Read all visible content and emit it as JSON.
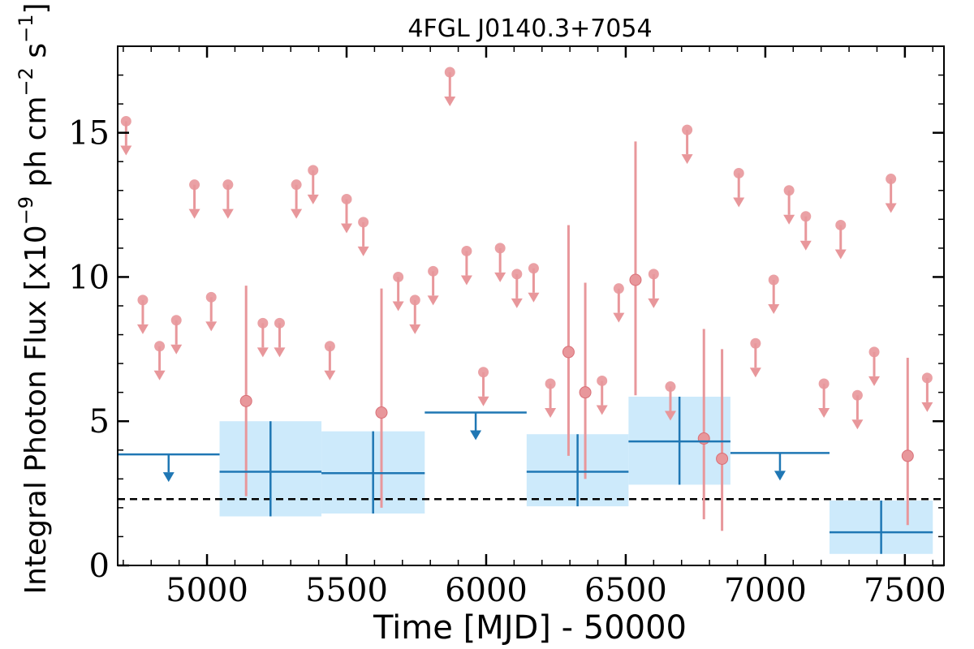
{
  "chart_data": {
    "type": "scatter",
    "title": "4FGL J0140.3+7054",
    "xlabel": "Time [MJD] - 50000",
    "ylabel": "Integral Photon Flux [x10",
    "ylabel_exp": "−9",
    "ylabel_mid": " ph cm",
    "ylabel_exp2": "−2",
    "ylabel_mid2": " s",
    "ylabel_exp3": "−1",
    "ylabel_end": "]",
    "xlim": [
      4680,
      7640
    ],
    "ylim": [
      0,
      18
    ],
    "xticks": [
      "5000",
      "5500",
      "6000",
      "6500",
      "7000",
      "7500"
    ],
    "yticks": [
      "0",
      "5",
      "10",
      "15"
    ],
    "reference_line": 2.3,
    "colors": {
      "monthly": "#e8979b",
      "yearly": "#1f77b4",
      "band": "#cdeafb",
      "reference": "#000000"
    },
    "series": [
      {
        "id": "monthly-upper-limits",
        "points": [
          {
            "x": 4710,
            "y": 15.4
          },
          {
            "x": 4770,
            "y": 9.2
          },
          {
            "x": 4830,
            "y": 7.6
          },
          {
            "x": 4890,
            "y": 8.5
          },
          {
            "x": 4955,
            "y": 13.2
          },
          {
            "x": 5015,
            "y": 9.3
          },
          {
            "x": 5075,
            "y": 13.2
          },
          {
            "x": 5200,
            "y": 8.4
          },
          {
            "x": 5260,
            "y": 8.4
          },
          {
            "x": 5320,
            "y": 13.2
          },
          {
            "x": 5380,
            "y": 13.7
          },
          {
            "x": 5440,
            "y": 7.6
          },
          {
            "x": 5500,
            "y": 12.7
          },
          {
            "x": 5560,
            "y": 11.9
          },
          {
            "x": 5685,
            "y": 10.0
          },
          {
            "x": 5745,
            "y": 9.2
          },
          {
            "x": 5810,
            "y": 10.2
          },
          {
            "x": 5870,
            "y": 17.1
          },
          {
            "x": 5930,
            "y": 10.9
          },
          {
            "x": 5990,
            "y": 6.7
          },
          {
            "x": 6050,
            "y": 11.0
          },
          {
            "x": 6110,
            "y": 10.1
          },
          {
            "x": 6170,
            "y": 10.3
          },
          {
            "x": 6230,
            "y": 6.3
          },
          {
            "x": 6415,
            "y": 6.4
          },
          {
            "x": 6475,
            "y": 9.6
          },
          {
            "x": 6600,
            "y": 10.1
          },
          {
            "x": 6660,
            "y": 6.2
          },
          {
            "x": 6720,
            "y": 15.1
          },
          {
            "x": 6905,
            "y": 13.6
          },
          {
            "x": 6965,
            "y": 7.7
          },
          {
            "x": 7030,
            "y": 9.9
          },
          {
            "x": 7085,
            "y": 13.0
          },
          {
            "x": 7145,
            "y": 12.1
          },
          {
            "x": 7210,
            "y": 6.3
          },
          {
            "x": 7270,
            "y": 11.8
          },
          {
            "x": 7330,
            "y": 5.9
          },
          {
            "x": 7390,
            "y": 7.4
          },
          {
            "x": 7450,
            "y": 13.4
          },
          {
            "x": 7580,
            "y": 6.5
          }
        ]
      },
      {
        "id": "monthly-detections",
        "points": [
          {
            "x": 5140,
            "y": 5.7,
            "ylo": 2.4,
            "yhi": 9.7
          },
          {
            "x": 5625,
            "y": 5.3,
            "ylo": 2.0,
            "yhi": 9.6
          },
          {
            "x": 6295,
            "y": 7.4,
            "ylo": 3.8,
            "yhi": 11.8
          },
          {
            "x": 6355,
            "y": 6.0,
            "ylo": 3.0,
            "yhi": 9.8
          },
          {
            "x": 6535,
            "y": 9.9,
            "ylo": 5.9,
            "yhi": 14.7
          },
          {
            "x": 6780,
            "y": 4.4,
            "ylo": 1.6,
            "yhi": 8.2
          },
          {
            "x": 6845,
            "y": 3.7,
            "ylo": 1.2,
            "yhi": 7.5
          },
          {
            "x": 7510,
            "y": 3.8,
            "ylo": 1.4,
            "yhi": 7.2
          }
        ]
      },
      {
        "id": "yearly-upper-limits",
        "points": [
          {
            "x0": 4680,
            "x1": 5045,
            "y": 3.85
          },
          {
            "x0": 5780,
            "x1": 6145,
            "y": 5.3
          },
          {
            "x0": 6875,
            "x1": 7230,
            "y": 3.9
          }
        ]
      },
      {
        "id": "yearly-detections",
        "points": [
          {
            "x0": 5045,
            "x1": 5410,
            "y": 3.25,
            "ylo": 1.7,
            "yhi": 5.0
          },
          {
            "x0": 5410,
            "x1": 5780,
            "y": 3.2,
            "ylo": 1.8,
            "yhi": 4.65
          },
          {
            "x0": 6145,
            "x1": 6510,
            "y": 3.25,
            "ylo": 2.05,
            "yhi": 4.55
          },
          {
            "x0": 6510,
            "x1": 6875,
            "y": 4.3,
            "ylo": 2.8,
            "yhi": 5.85
          },
          {
            "x0": 7230,
            "x1": 7600,
            "y": 1.15,
            "ylo": 0.4,
            "yhi": 2.25
          }
        ]
      }
    ]
  }
}
